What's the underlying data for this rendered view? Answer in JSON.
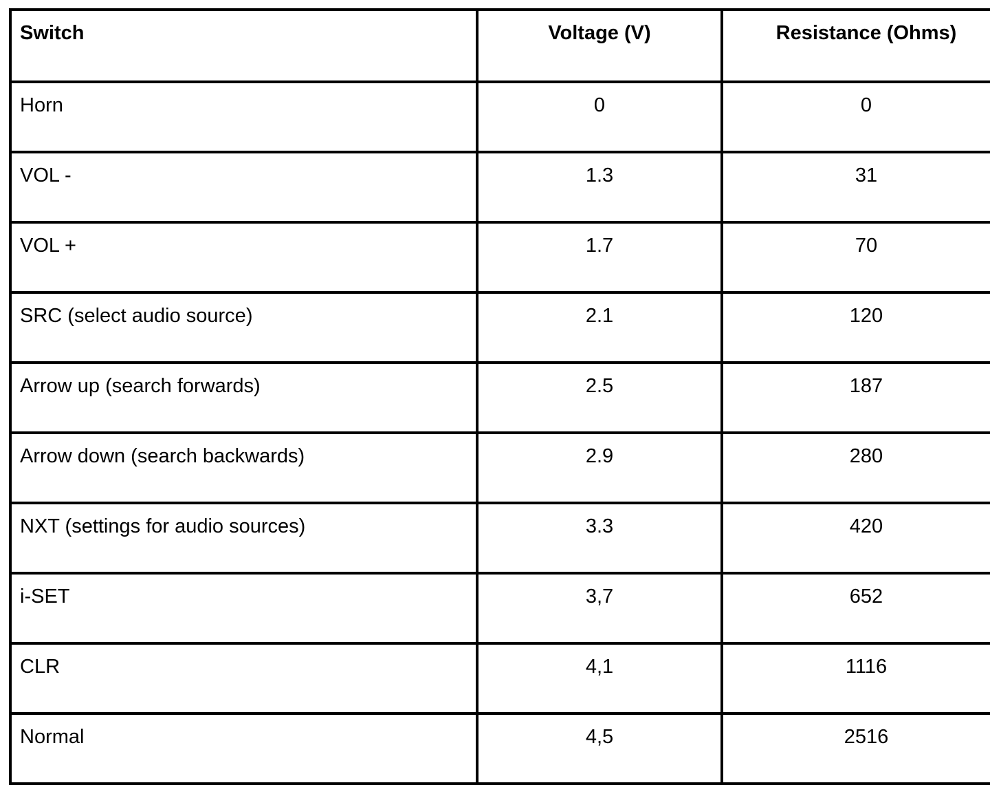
{
  "colors": {
    "background": "#ffffff",
    "text": "#000000",
    "border": "#000000"
  },
  "table": {
    "columns": [
      "Switch",
      "Voltage (V)",
      "Resistance (Ohms)"
    ],
    "rows": [
      {
        "switch": "Horn",
        "voltage": "0",
        "resistance": "0"
      },
      {
        "switch": "VOL -",
        "voltage": "1.3",
        "resistance": "31"
      },
      {
        "switch": "VOL +",
        "voltage": "1.7",
        "resistance": "70"
      },
      {
        "switch": "SRC (select audio source)",
        "voltage": "2.1",
        "resistance": "120"
      },
      {
        "switch": "Arrow up (search forwards)",
        "voltage": "2.5",
        "resistance": "187"
      },
      {
        "switch": "Arrow down (search backwards)",
        "voltage": "2.9",
        "resistance": "280"
      },
      {
        "switch": "NXT (settings for audio sources)",
        "voltage": "3.3",
        "resistance": "420"
      },
      {
        "switch": "i-SET",
        "voltage": "3,7",
        "resistance": "652"
      },
      {
        "switch": "CLR",
        "voltage": "4,1",
        "resistance": "1116"
      },
      {
        "switch": "Normal",
        "voltage": "4,5",
        "resistance": "2516"
      }
    ]
  }
}
